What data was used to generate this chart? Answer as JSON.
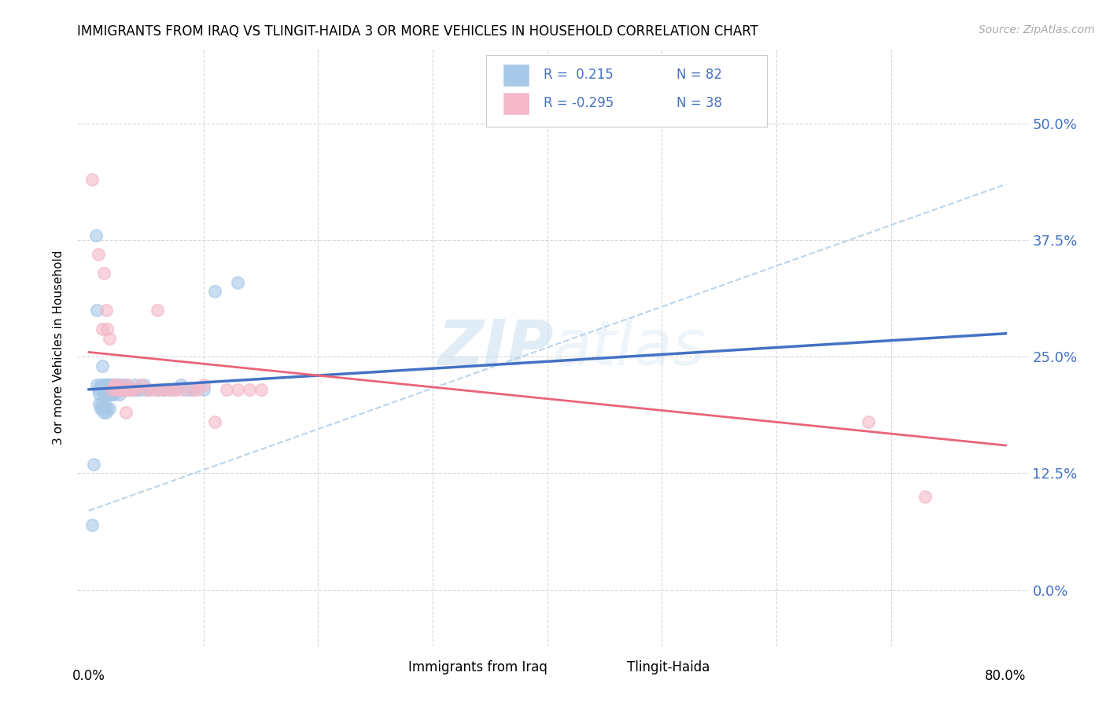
{
  "title": "IMMIGRANTS FROM IRAQ VS TLINGIT-HAIDA 3 OR MORE VEHICLES IN HOUSEHOLD CORRELATION CHART",
  "source": "Source: ZipAtlas.com",
  "ylabel": "3 or more Vehicles in Household",
  "ytick_labels": [
    "0.0%",
    "12.5%",
    "25.0%",
    "37.5%",
    "50.0%"
  ],
  "ytick_values": [
    0.0,
    0.125,
    0.25,
    0.375,
    0.5
  ],
  "xlim": [
    -0.01,
    0.82
  ],
  "ylim": [
    -0.06,
    0.58
  ],
  "legend_label1": "Immigrants from Iraq",
  "legend_label2": "Tlingit-Haida",
  "blue_color": "#a8c8e8",
  "pink_color": "#f4b8c8",
  "blue_line_color": "#4472c4",
  "pink_line_color": "#e8647a",
  "dashed_line_color": "#b8d4ee",
  "watermark_zip": "ZIP",
  "watermark_atlas": "atlas",
  "blue_scatter_x": [
    0.003,
    0.004,
    0.006,
    0.007,
    0.007,
    0.008,
    0.009,
    0.009,
    0.01,
    0.01,
    0.011,
    0.011,
    0.012,
    0.012,
    0.012,
    0.013,
    0.013,
    0.014,
    0.014,
    0.015,
    0.015,
    0.015,
    0.015,
    0.016,
    0.016,
    0.016,
    0.017,
    0.017,
    0.017,
    0.018,
    0.018,
    0.018,
    0.018,
    0.019,
    0.019,
    0.019,
    0.02,
    0.02,
    0.02,
    0.021,
    0.021,
    0.022,
    0.022,
    0.022,
    0.023,
    0.024,
    0.024,
    0.025,
    0.025,
    0.026,
    0.027,
    0.027,
    0.027,
    0.028,
    0.028,
    0.03,
    0.03,
    0.031,
    0.032,
    0.033,
    0.033,
    0.034,
    0.035,
    0.036,
    0.04,
    0.04,
    0.042,
    0.042,
    0.045,
    0.048,
    0.05,
    0.052,
    0.06,
    0.065,
    0.07,
    0.075,
    0.08,
    0.085,
    0.09,
    0.1,
    0.11,
    0.13
  ],
  "blue_scatter_y": [
    0.07,
    0.135,
    0.38,
    0.3,
    0.22,
    0.215,
    0.2,
    0.21,
    0.195,
    0.22,
    0.195,
    0.2,
    0.215,
    0.22,
    0.24,
    0.19,
    0.21,
    0.2,
    0.215,
    0.215,
    0.21,
    0.22,
    0.19,
    0.22,
    0.21,
    0.195,
    0.22,
    0.215,
    0.21,
    0.22,
    0.215,
    0.21,
    0.195,
    0.215,
    0.21,
    0.22,
    0.22,
    0.215,
    0.21,
    0.215,
    0.22,
    0.22,
    0.215,
    0.21,
    0.215,
    0.215,
    0.22,
    0.22,
    0.215,
    0.215,
    0.215,
    0.22,
    0.21,
    0.215,
    0.215,
    0.215,
    0.22,
    0.215,
    0.215,
    0.22,
    0.215,
    0.215,
    0.215,
    0.215,
    0.22,
    0.215,
    0.215,
    0.215,
    0.215,
    0.22,
    0.215,
    0.215,
    0.215,
    0.215,
    0.215,
    0.215,
    0.22,
    0.215,
    0.215,
    0.215,
    0.32,
    0.33
  ],
  "pink_scatter_x": [
    0.003,
    0.008,
    0.012,
    0.013,
    0.015,
    0.016,
    0.018,
    0.02,
    0.022,
    0.025,
    0.025,
    0.028,
    0.03,
    0.032,
    0.033,
    0.033,
    0.035,
    0.038,
    0.04,
    0.045,
    0.05,
    0.055,
    0.06,
    0.06,
    0.065,
    0.07,
    0.075,
    0.08,
    0.09,
    0.095,
    0.1,
    0.11,
    0.12,
    0.13,
    0.14,
    0.15,
    0.68,
    0.73
  ],
  "pink_scatter_y": [
    0.44,
    0.36,
    0.28,
    0.34,
    0.3,
    0.28,
    0.27,
    0.215,
    0.22,
    0.215,
    0.22,
    0.215,
    0.215,
    0.19,
    0.22,
    0.215,
    0.215,
    0.215,
    0.215,
    0.22,
    0.215,
    0.215,
    0.215,
    0.3,
    0.215,
    0.215,
    0.215,
    0.215,
    0.215,
    0.215,
    0.22,
    0.18,
    0.215,
    0.215,
    0.215,
    0.215,
    0.18,
    0.1
  ],
  "blue_trend_x": [
    0.0,
    0.8
  ],
  "blue_trend_y": [
    0.215,
    0.275
  ],
  "pink_trend_x": [
    0.0,
    0.8
  ],
  "pink_trend_y": [
    0.255,
    0.155
  ],
  "dashed_trend_x": [
    0.0,
    0.8
  ],
  "dashed_trend_y": [
    0.085,
    0.435
  ]
}
